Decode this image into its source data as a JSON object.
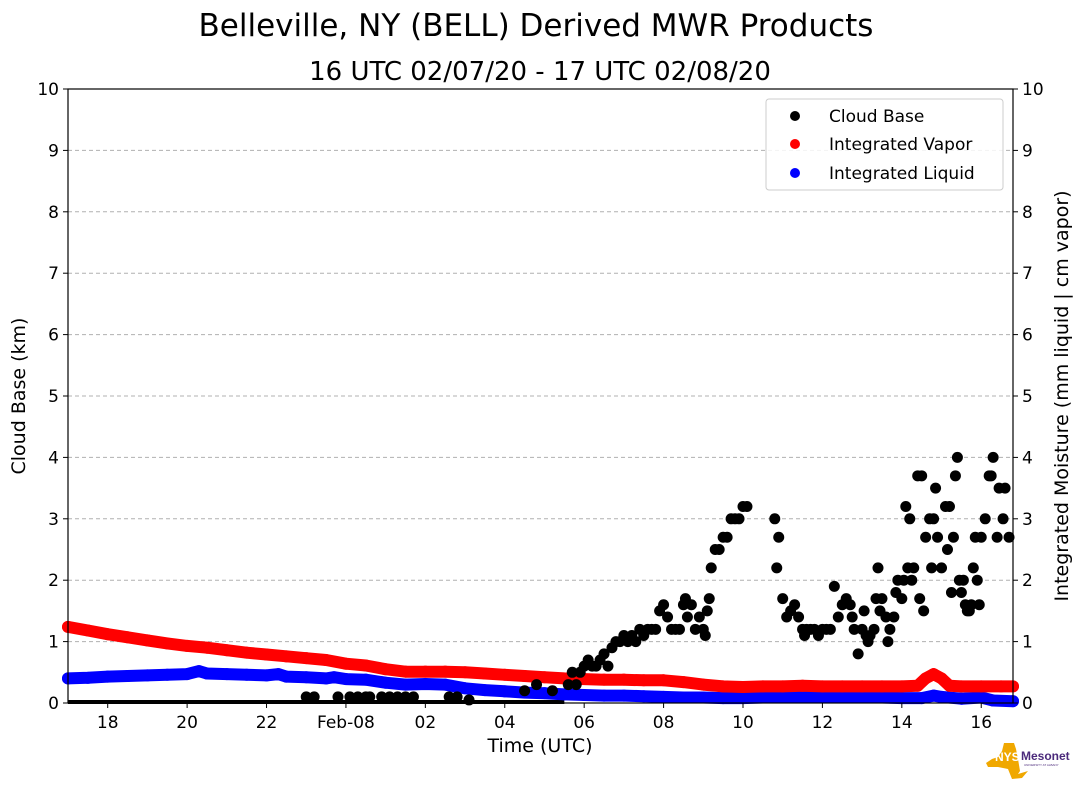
{
  "chart_data": {
    "type": "scatter",
    "title": "Belleville, NY (BELL) Derived MWR Products",
    "subtitle": "16 UTC 02/07/20 - 17 UTC 02/08/20",
    "xlabel": "Time (UTC)",
    "ylabel": "Cloud Base (km)",
    "ylabel_right": "Integrated Moisture (mm liquid | cm vapor)",
    "x_unit": "hours since 00 UTC 02/08/20",
    "xlim": [
      -7.0,
      16.8
    ],
    "ylim": [
      0,
      10
    ],
    "ylim_right": [
      0,
      10
    ],
    "grid": "horizontal dashed",
    "legend_position": "top-right",
    "x_ticks": [
      {
        "x": -6,
        "label": "18"
      },
      {
        "x": -4,
        "label": "20"
      },
      {
        "x": -2,
        "label": "22"
      },
      {
        "x": 0,
        "label": "Feb-08"
      },
      {
        "x": 2,
        "label": "02"
      },
      {
        "x": 4,
        "label": "04"
      },
      {
        "x": 6,
        "label": "06"
      },
      {
        "x": 8,
        "label": "08"
      },
      {
        "x": 10,
        "label": "10"
      },
      {
        "x": 12,
        "label": "12"
      },
      {
        "x": 14,
        "label": "14"
      },
      {
        "x": 16,
        "label": "16"
      }
    ],
    "y_ticks": [
      "0",
      "1",
      "2",
      "3",
      "4",
      "5",
      "6",
      "7",
      "8",
      "9",
      "10"
    ],
    "y_ticks_right": [
      "0",
      "1",
      "2",
      "3",
      "4",
      "5",
      "6",
      "7",
      "8",
      "9",
      "10"
    ],
    "series": [
      {
        "name": "Cloud Base",
        "color": "#000000",
        "axis": "left",
        "points": [
          [
            -1.0,
            0.1
          ],
          [
            -0.8,
            0.1
          ],
          [
            -0.2,
            0.1
          ],
          [
            0.1,
            0.1
          ],
          [
            0.3,
            0.1
          ],
          [
            0.5,
            0.1
          ],
          [
            0.6,
            0.1
          ],
          [
            0.9,
            0.1
          ],
          [
            1.1,
            0.1
          ],
          [
            1.3,
            0.1
          ],
          [
            1.5,
            0.1
          ],
          [
            1.7,
            0.1
          ],
          [
            2.6,
            0.1
          ],
          [
            2.8,
            0.1
          ],
          [
            3.1,
            0.05
          ],
          [
            4.5,
            0.2
          ],
          [
            4.8,
            0.3
          ],
          [
            5.2,
            0.2
          ],
          [
            5.6,
            0.3
          ],
          [
            5.7,
            0.5
          ],
          [
            5.8,
            0.3
          ],
          [
            5.9,
            0.5
          ],
          [
            6.0,
            0.6
          ],
          [
            6.1,
            0.7
          ],
          [
            6.2,
            0.6
          ],
          [
            6.3,
            0.6
          ],
          [
            6.4,
            0.7
          ],
          [
            6.5,
            0.8
          ],
          [
            6.6,
            0.6
          ],
          [
            6.7,
            0.9
          ],
          [
            6.8,
            1.0
          ],
          [
            6.9,
            1.0
          ],
          [
            7.0,
            1.1
          ],
          [
            7.1,
            1.0
          ],
          [
            7.2,
            1.1
          ],
          [
            7.3,
            1.0
          ],
          [
            7.4,
            1.2
          ],
          [
            7.5,
            1.1
          ],
          [
            7.6,
            1.2
          ],
          [
            7.7,
            1.2
          ],
          [
            7.8,
            1.2
          ],
          [
            7.9,
            1.5
          ],
          [
            8.0,
            1.6
          ],
          [
            8.1,
            1.4
          ],
          [
            8.2,
            1.2
          ],
          [
            8.3,
            1.2
          ],
          [
            8.4,
            1.2
          ],
          [
            8.5,
            1.6
          ],
          [
            8.55,
            1.7
          ],
          [
            8.6,
            1.4
          ],
          [
            8.7,
            1.6
          ],
          [
            8.8,
            1.2
          ],
          [
            8.9,
            1.4
          ],
          [
            9.0,
            1.2
          ],
          [
            9.05,
            1.1
          ],
          [
            9.1,
            1.5
          ],
          [
            9.15,
            1.7
          ],
          [
            9.2,
            2.2
          ],
          [
            9.3,
            2.5
          ],
          [
            9.4,
            2.5
          ],
          [
            9.5,
            2.7
          ],
          [
            9.6,
            2.7
          ],
          [
            9.7,
            3.0
          ],
          [
            9.8,
            3.0
          ],
          [
            9.9,
            3.0
          ],
          [
            10.0,
            3.2
          ],
          [
            10.1,
            3.2
          ],
          [
            10.8,
            3.0
          ],
          [
            10.85,
            2.2
          ],
          [
            10.9,
            2.7
          ],
          [
            11.0,
            1.7
          ],
          [
            11.1,
            1.4
          ],
          [
            11.2,
            1.5
          ],
          [
            11.3,
            1.6
          ],
          [
            11.4,
            1.4
          ],
          [
            11.5,
            1.2
          ],
          [
            11.55,
            1.1
          ],
          [
            11.6,
            1.2
          ],
          [
            11.7,
            1.2
          ],
          [
            11.8,
            1.2
          ],
          [
            11.9,
            1.1
          ],
          [
            12.0,
            1.2
          ],
          [
            12.1,
            1.2
          ],
          [
            12.2,
            1.2
          ],
          [
            12.3,
            1.9
          ],
          [
            12.4,
            1.4
          ],
          [
            12.5,
            1.6
          ],
          [
            12.6,
            1.7
          ],
          [
            12.7,
            1.6
          ],
          [
            12.75,
            1.4
          ],
          [
            12.8,
            1.2
          ],
          [
            12.9,
            0.8
          ],
          [
            13.0,
            1.2
          ],
          [
            13.05,
            1.5
          ],
          [
            13.1,
            1.1
          ],
          [
            13.15,
            1.0
          ],
          [
            13.2,
            1.1
          ],
          [
            13.3,
            1.2
          ],
          [
            13.35,
            1.7
          ],
          [
            13.4,
            2.2
          ],
          [
            13.45,
            1.5
          ],
          [
            13.5,
            1.7
          ],
          [
            13.6,
            1.4
          ],
          [
            13.65,
            1.0
          ],
          [
            13.7,
            1.2
          ],
          [
            13.8,
            1.4
          ],
          [
            13.85,
            1.8
          ],
          [
            13.9,
            2.0
          ],
          [
            14.0,
            1.7
          ],
          [
            14.05,
            2.0
          ],
          [
            14.1,
            3.2
          ],
          [
            14.15,
            2.2
          ],
          [
            14.2,
            3.0
          ],
          [
            14.25,
            2.0
          ],
          [
            14.3,
            2.2
          ],
          [
            14.4,
            3.7
          ],
          [
            14.45,
            1.7
          ],
          [
            14.5,
            3.7
          ],
          [
            14.55,
            1.5
          ],
          [
            14.6,
            2.7
          ],
          [
            14.7,
            3.0
          ],
          [
            14.75,
            2.2
          ],
          [
            14.8,
            3.0
          ],
          [
            14.85,
            3.5
          ],
          [
            14.9,
            2.7
          ],
          [
            15.0,
            2.2
          ],
          [
            15.1,
            3.2
          ],
          [
            15.15,
            2.5
          ],
          [
            15.2,
            3.2
          ],
          [
            15.25,
            1.8
          ],
          [
            15.3,
            2.7
          ],
          [
            15.35,
            3.7
          ],
          [
            15.4,
            4.0
          ],
          [
            15.45,
            2.0
          ],
          [
            15.5,
            1.8
          ],
          [
            15.55,
            2.0
          ],
          [
            15.6,
            1.6
          ],
          [
            15.65,
            1.5
          ],
          [
            15.7,
            1.5
          ],
          [
            15.75,
            1.6
          ],
          [
            15.8,
            2.2
          ],
          [
            15.85,
            2.7
          ],
          [
            15.9,
            2.0
          ],
          [
            15.95,
            1.6
          ],
          [
            16.0,
            2.7
          ],
          [
            16.1,
            3.0
          ],
          [
            16.2,
            3.7
          ],
          [
            16.25,
            3.7
          ],
          [
            16.3,
            4.0
          ],
          [
            16.4,
            2.7
          ],
          [
            16.45,
            3.5
          ],
          [
            16.55,
            3.0
          ],
          [
            16.6,
            3.5
          ],
          [
            16.7,
            2.7
          ]
        ]
      },
      {
        "name": "Integrated Vapor",
        "color": "#ff0000",
        "axis": "right",
        "points": [
          [
            -7.0,
            1.24
          ],
          [
            -6.5,
            1.18
          ],
          [
            -6.0,
            1.12
          ],
          [
            -5.5,
            1.07
          ],
          [
            -5.0,
            1.02
          ],
          [
            -4.5,
            0.97
          ],
          [
            -4.0,
            0.93
          ],
          [
            -3.5,
            0.9
          ],
          [
            -3.0,
            0.86
          ],
          [
            -2.5,
            0.82
          ],
          [
            -2.0,
            0.79
          ],
          [
            -1.5,
            0.76
          ],
          [
            -1.0,
            0.73
          ],
          [
            -0.5,
            0.7
          ],
          [
            0.0,
            0.64
          ],
          [
            0.5,
            0.61
          ],
          [
            1.0,
            0.55
          ],
          [
            1.5,
            0.51
          ],
          [
            2.0,
            0.51
          ],
          [
            2.5,
            0.51
          ],
          [
            3.0,
            0.5
          ],
          [
            3.5,
            0.48
          ],
          [
            4.0,
            0.46
          ],
          [
            4.5,
            0.44
          ],
          [
            5.0,
            0.42
          ],
          [
            5.5,
            0.4
          ],
          [
            6.0,
            0.39
          ],
          [
            6.5,
            0.38
          ],
          [
            7.0,
            0.38
          ],
          [
            7.5,
            0.37
          ],
          [
            8.0,
            0.37
          ],
          [
            8.5,
            0.34
          ],
          [
            9.0,
            0.3
          ],
          [
            9.5,
            0.27
          ],
          [
            10.0,
            0.26
          ],
          [
            10.5,
            0.27
          ],
          [
            11.0,
            0.27
          ],
          [
            11.5,
            0.28
          ],
          [
            12.0,
            0.27
          ],
          [
            12.5,
            0.27
          ],
          [
            13.0,
            0.27
          ],
          [
            13.5,
            0.27
          ],
          [
            14.0,
            0.27
          ],
          [
            14.4,
            0.28
          ],
          [
            14.6,
            0.4
          ],
          [
            14.8,
            0.47
          ],
          [
            15.0,
            0.4
          ],
          [
            15.2,
            0.28
          ],
          [
            15.5,
            0.27
          ],
          [
            16.0,
            0.27
          ],
          [
            16.5,
            0.27
          ],
          [
            16.8,
            0.27
          ]
        ]
      },
      {
        "name": "Integrated Liquid",
        "color": "#0000ff",
        "axis": "right",
        "points": [
          [
            -7.0,
            0.4
          ],
          [
            -6.5,
            0.41
          ],
          [
            -6.0,
            0.43
          ],
          [
            -5.5,
            0.44
          ],
          [
            -5.0,
            0.45
          ],
          [
            -4.5,
            0.46
          ],
          [
            -4.0,
            0.47
          ],
          [
            -3.7,
            0.52
          ],
          [
            -3.5,
            0.48
          ],
          [
            -3.0,
            0.47
          ],
          [
            -2.5,
            0.46
          ],
          [
            -2.0,
            0.45
          ],
          [
            -1.7,
            0.47
          ],
          [
            -1.5,
            0.43
          ],
          [
            -1.0,
            0.42
          ],
          [
            -0.5,
            0.4
          ],
          [
            -0.3,
            0.42
          ],
          [
            0.0,
            0.39
          ],
          [
            0.5,
            0.38
          ],
          [
            1.0,
            0.33
          ],
          [
            1.5,
            0.3
          ],
          [
            2.0,
            0.31
          ],
          [
            2.5,
            0.3
          ],
          [
            3.0,
            0.24
          ],
          [
            3.5,
            0.21
          ],
          [
            4.0,
            0.19
          ],
          [
            4.5,
            0.17
          ],
          [
            5.0,
            0.16
          ],
          [
            5.5,
            0.14
          ],
          [
            6.0,
            0.13
          ],
          [
            6.5,
            0.12
          ],
          [
            7.0,
            0.12
          ],
          [
            7.5,
            0.11
          ],
          [
            8.0,
            0.1
          ],
          [
            8.5,
            0.09
          ],
          [
            9.0,
            0.09
          ],
          [
            9.5,
            0.08
          ],
          [
            10.0,
            0.08
          ],
          [
            10.5,
            0.09
          ],
          [
            11.0,
            0.1
          ],
          [
            11.5,
            0.1
          ],
          [
            12.0,
            0.1
          ],
          [
            12.5,
            0.1
          ],
          [
            13.0,
            0.1
          ],
          [
            13.5,
            0.09
          ],
          [
            14.0,
            0.08
          ],
          [
            14.5,
            0.08
          ],
          [
            14.8,
            0.12
          ],
          [
            15.0,
            0.1
          ],
          [
            15.5,
            0.07
          ],
          [
            16.0,
            0.09
          ],
          [
            16.3,
            0.04
          ],
          [
            16.8,
            0.03
          ]
        ]
      }
    ]
  },
  "logo": {
    "part1": "NYS",
    "part2": "Mesonet",
    "tagline": "UNIVERSITY AT ALBANY"
  }
}
